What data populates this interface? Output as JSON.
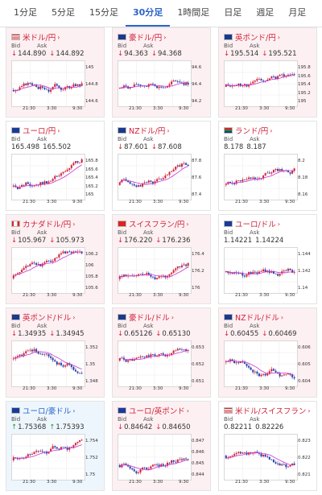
{
  "tabs": [
    "1分足",
    "5分足",
    "15分足",
    "30分足",
    "1時間足",
    "日足",
    "週足",
    "月足"
  ],
  "active_tab": 3,
  "bid_label": "Bid",
  "ask_label": "Ask",
  "x_ticks": [
    "21:30",
    "3:30",
    "9:30"
  ],
  "colors": {
    "up": "#d0223a",
    "down": "#2a3fa8",
    "ma": "#cc33cc",
    "accent": "#2a63c8"
  },
  "cards": [
    {
      "title": "米ドル/円",
      "color": "pink",
      "title_color": "red",
      "flag": "us",
      "dir": "down",
      "bid": "144.890",
      "ask": "144.892",
      "yticks": [
        "145",
        "144.8",
        "144.6"
      ],
      "seed": 3,
      "trend": 0.4
    },
    {
      "title": "豪ドル/円",
      "color": "pink",
      "title_color": "red",
      "flag": "au",
      "dir": "down",
      "bid": "94.363",
      "ask": "94.368",
      "yticks": [
        "94.6",
        "94.4",
        "94.2"
      ],
      "seed": 7,
      "trend": 0.3
    },
    {
      "title": "英ポンド/円",
      "color": "pink",
      "title_color": "red",
      "flag": "gb",
      "dir": "down",
      "bid": "195.514",
      "ask": "195.521",
      "yticks": [
        "195.8",
        "195.6",
        "195.4",
        "195.2",
        "195"
      ],
      "seed": 11,
      "trend": 0.2
    },
    {
      "title": "ユーロ/円",
      "color": "white",
      "title_color": "red",
      "flag": "eu",
      "dir": "none",
      "bid": "165.498",
      "ask": "165.502",
      "yticks": [
        "165.8",
        "165.6",
        "165.4",
        "165.2",
        "165"
      ],
      "seed": 13,
      "trend": 0.6
    },
    {
      "title": "NZドル/円",
      "color": "white",
      "title_color": "red",
      "flag": "nz",
      "dir": "down",
      "bid": "87.601",
      "ask": "87.608",
      "yticks": [
        "87.8",
        "87.6",
        "87.4"
      ],
      "seed": 17,
      "trend": 0.5
    },
    {
      "title": "ランド/円",
      "color": "white",
      "title_color": "red",
      "flag": "za",
      "dir": "none",
      "bid": "8.178",
      "ask": "8.187",
      "yticks": [
        "8.2",
        "8.18",
        "8.16"
      ],
      "seed": 19,
      "trend": 0.5
    },
    {
      "title": "カナダドル/円",
      "color": "pink",
      "title_color": "red",
      "flag": "ca",
      "dir": "down",
      "bid": "105.967",
      "ask": "105.973",
      "yticks": [
        "106.2",
        "106",
        "105.8",
        "105.6"
      ],
      "seed": 23,
      "trend": 0.5
    },
    {
      "title": "スイスフラン/円",
      "color": "pink",
      "title_color": "red",
      "flag": "ch",
      "dir": "down",
      "bid": "176.220",
      "ask": "176.236",
      "yticks": [
        "176.4",
        "176.2",
        "176"
      ],
      "seed": 29,
      "trend": 0.55
    },
    {
      "title": "ユーロ/ドル",
      "color": "white",
      "title_color": "red",
      "flag": "eu",
      "dir": "none",
      "bid": "1.14221",
      "ask": "1.14224",
      "yticks": [
        "1.144",
        "1.142",
        "1.14"
      ],
      "seed": 31,
      "trend": 0.1
    },
    {
      "title": "英ポンド/ドル",
      "color": "pink",
      "title_color": "red",
      "flag": "gb",
      "dir": "down",
      "bid": "1.34935",
      "ask": "1.34945",
      "yticks": [
        "1.352",
        "1.35",
        "1.348"
      ],
      "seed": 37,
      "trend": -0.3
    },
    {
      "title": "豪ドル/ドル",
      "color": "pink",
      "title_color": "red",
      "flag": "au",
      "dir": "down",
      "bid": "0.65126",
      "ask": "0.65130",
      "yticks": [
        "0.653",
        "0.652",
        "0.651"
      ],
      "seed": 41,
      "trend": -0.2
    },
    {
      "title": "NZドル/ドル",
      "color": "pink",
      "title_color": "red",
      "flag": "nz",
      "dir": "down",
      "bid": "0.60455",
      "ask": "0.60469",
      "yticks": [
        "0.606",
        "0.605",
        "0.604"
      ],
      "seed": 43,
      "trend": -0.1
    },
    {
      "title": "ユーロ/豪ドル",
      "color": "blue",
      "title_color": "blue",
      "flag": "eu",
      "dir": "up",
      "bid": "1.75368",
      "ask": "1.75393",
      "yticks": [
        "1.754",
        "1.752",
        "1.75"
      ],
      "seed": 47,
      "trend": 0.2
    },
    {
      "title": "ユーロ/英ポンド",
      "color": "pink",
      "title_color": "red",
      "flag": "eu",
      "dir": "down",
      "bid": "0.84642",
      "ask": "0.84650",
      "yticks": [
        "0.847",
        "0.846",
        "0.845",
        "0.844"
      ],
      "seed": 53,
      "trend": 0.5
    },
    {
      "title": "米ドル/スイスフラン",
      "color": "white",
      "title_color": "red",
      "flag": "us",
      "dir": "none",
      "bid": "0.82211",
      "ask": "0.82226",
      "yticks": [
        "0.823",
        "0.822",
        "0.821"
      ],
      "seed": 59,
      "trend": -0.1
    }
  ]
}
